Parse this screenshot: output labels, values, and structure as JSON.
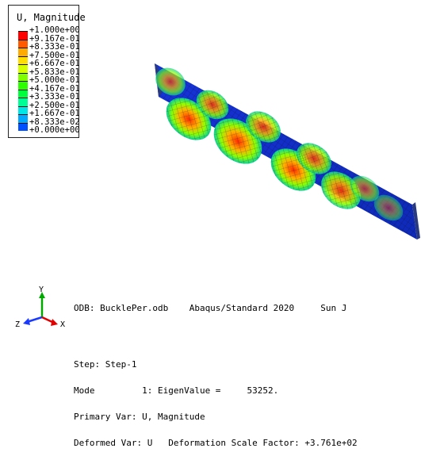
{
  "legend": {
    "title": "U, Magnitude",
    "labels": [
      "+1.000e+00",
      "+9.167e-01",
      "+8.333e-01",
      "+7.500e-01",
      "+6.667e-01",
      "+5.833e-01",
      "+5.000e-01",
      "+4.167e-01",
      "+3.333e-01",
      "+2.500e-01",
      "+1.667e-01",
      "+8.333e-02",
      "+0.000e+00"
    ],
    "colors": [
      "#ff0000",
      "#ff5a00",
      "#ffaa00",
      "#ffdd00",
      "#d6ff00",
      "#80ff00",
      "#2cff00",
      "#00ff3c",
      "#00ff94",
      "#00e6e6",
      "#00a8ff",
      "#0050ff",
      "#0000ff"
    ]
  },
  "triad": {
    "y_label": "Y",
    "z_label": "Z",
    "x_label": "X",
    "y_color": "#00a800",
    "z_color": "#1a3aff",
    "x_color": "#e00000"
  },
  "info": {
    "line1": "ODB: BucklePer.odb    Abaqus/Standard 2020     Sun J",
    "line2": "Step: Step-1",
    "line3": "Mode         1: EigenValue =     53252.",
    "line4": "Primary Var: U, Magnitude",
    "line5": "Deformed Var: U   Deformation Scale Factor: +3.761e+02"
  }
}
